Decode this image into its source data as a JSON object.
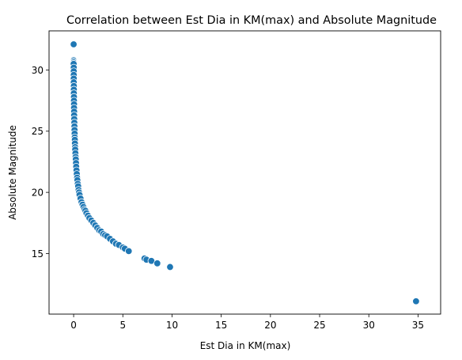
{
  "chart_data": {
    "type": "scatter",
    "title": "Correlation between Est Dia in KM(max) and Absolute Magnitude",
    "xlabel": "Est Dia in KM(max)",
    "ylabel": "Absolute Magnitude",
    "xlim": [
      -2.5,
      37.3
    ],
    "ylim": [
      10.05,
      33.2
    ],
    "xticks": [
      0,
      5,
      10,
      15,
      20,
      25,
      30,
      35
    ],
    "yticks": [
      15,
      20,
      25,
      30
    ],
    "grid": false,
    "marker_color": "#1f77b4",
    "marker_edge_color": "#ffffff",
    "points": [
      [
        0.0,
        32.1
      ],
      [
        0.0,
        30.8
      ],
      [
        0.0,
        30.7
      ],
      [
        0.0,
        30.6
      ],
      [
        0.0,
        30.5
      ],
      [
        0.01,
        30.2
      ],
      [
        0.01,
        29.9
      ],
      [
        0.01,
        29.6
      ],
      [
        0.01,
        29.3
      ],
      [
        0.01,
        29.0
      ],
      [
        0.02,
        28.7
      ],
      [
        0.02,
        28.4
      ],
      [
        0.02,
        28.1
      ],
      [
        0.03,
        27.8
      ],
      [
        0.03,
        27.5
      ],
      [
        0.04,
        27.2
      ],
      [
        0.04,
        26.9
      ],
      [
        0.05,
        26.6
      ],
      [
        0.05,
        26.3
      ],
      [
        0.06,
        26.0
      ],
      [
        0.07,
        25.7
      ],
      [
        0.08,
        25.4
      ],
      [
        0.09,
        25.1
      ],
      [
        0.1,
        24.8
      ],
      [
        0.11,
        24.5
      ],
      [
        0.12,
        24.3
      ],
      [
        0.13,
        24.0
      ],
      [
        0.15,
        23.7
      ],
      [
        0.16,
        23.5
      ],
      [
        0.18,
        23.2
      ],
      [
        0.2,
        22.9
      ],
      [
        0.22,
        22.7
      ],
      [
        0.24,
        22.4
      ],
      [
        0.26,
        22.1
      ],
      [
        0.29,
        21.8
      ],
      [
        0.32,
        21.5
      ],
      [
        0.35,
        21.2
      ],
      [
        0.38,
        21.0
      ],
      [
        0.42,
        20.7
      ],
      [
        0.46,
        20.5
      ],
      [
        0.5,
        20.2
      ],
      [
        0.55,
        20.0
      ],
      [
        0.6,
        19.8
      ],
      [
        0.7,
        19.5
      ],
      [
        0.8,
        19.2
      ],
      [
        0.9,
        19.0
      ],
      [
        1.0,
        18.8
      ],
      [
        1.1,
        18.6
      ],
      [
        1.2,
        18.5
      ],
      [
        1.3,
        18.3
      ],
      [
        1.45,
        18.1
      ],
      [
        1.6,
        17.9
      ],
      [
        1.8,
        17.7
      ],
      [
        2.0,
        17.5
      ],
      [
        2.2,
        17.3
      ],
      [
        2.4,
        17.1
      ],
      [
        2.6,
        16.9
      ],
      [
        2.8,
        16.8
      ],
      [
        3.0,
        16.6
      ],
      [
        3.2,
        16.5
      ],
      [
        3.4,
        16.4
      ],
      [
        3.7,
        16.2
      ],
      [
        4.0,
        16.0
      ],
      [
        4.3,
        15.8
      ],
      [
        4.6,
        15.7
      ],
      [
        5.0,
        15.5
      ],
      [
        5.2,
        15.4
      ],
      [
        5.6,
        15.2
      ],
      [
        7.2,
        14.6
      ],
      [
        7.4,
        14.5
      ],
      [
        7.9,
        14.4
      ],
      [
        8.5,
        14.2
      ],
      [
        9.8,
        13.9
      ],
      [
        34.8,
        11.1
      ]
    ]
  }
}
